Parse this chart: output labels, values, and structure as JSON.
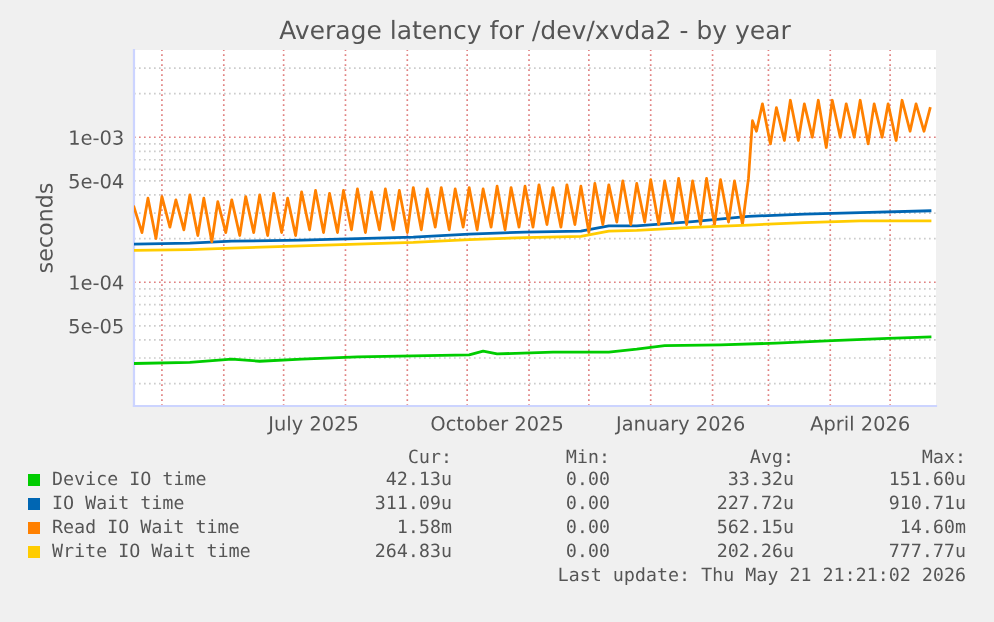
{
  "chart_data": {
    "type": "line",
    "title": "Average latency for /dev/xvda2 - by year",
    "ylabel": "seconds",
    "log": "y",
    "grid": true,
    "legend": "bottom",
    "xlim": [
      "2025-04-17",
      "2026-05-24"
    ],
    "xticks": [
      {
        "value": "2025-05-01",
        "label": null
      },
      {
        "value": "2025-06-01",
        "label": null
      },
      {
        "value": "2025-07-01",
        "label": null
      },
      {
        "value": "2025-07-16",
        "label": "July 2025"
      },
      {
        "value": "2025-08-01",
        "label": null
      },
      {
        "value": "2025-09-01",
        "label": null
      },
      {
        "value": "2025-10-01",
        "label": null
      },
      {
        "value": "2025-10-16",
        "label": "October 2025"
      },
      {
        "value": "2025-11-01",
        "label": null
      },
      {
        "value": "2025-12-01",
        "label": null
      },
      {
        "value": "2026-01-01",
        "label": null
      },
      {
        "value": "2026-01-16",
        "label": "January 2026"
      },
      {
        "value": "2026-02-01",
        "label": null
      },
      {
        "value": "2026-03-01",
        "label": null
      },
      {
        "value": "2026-04-01",
        "label": null
      },
      {
        "value": "2026-04-16",
        "label": "April 2026"
      },
      {
        "value": "2026-05-01",
        "label": null
      }
    ],
    "ylim": [
      1.4e-05,
      0.004
    ],
    "yticks": [
      {
        "value": 5e-05,
        "label": "5e-05"
      },
      {
        "value": 0.0001,
        "label": "1e-04"
      },
      {
        "value": 0.0005,
        "label": "5e-04"
      },
      {
        "value": 0.001,
        "label": "1e-03"
      }
    ],
    "series": [
      {
        "name": "Device IO time",
        "color": "#00cc00",
        "x": [
          "2025-04-17",
          "2025-05-15",
          "2025-06-05",
          "2025-06-19",
          "2025-07-10",
          "2025-08-07",
          "2025-09-04",
          "2025-10-02",
          "2025-10-09",
          "2025-10-16",
          "2025-11-13",
          "2025-12-11",
          "2025-12-25",
          "2026-01-08",
          "2026-02-05",
          "2026-03-05",
          "2026-04-02",
          "2026-04-30",
          "2026-05-21"
        ],
        "values": [
          2.75e-05,
          2.8e-05,
          2.95e-05,
          2.85e-05,
          2.95e-05,
          3.05e-05,
          3.1e-05,
          3.15e-05,
          3.35e-05,
          3.2e-05,
          3.3e-05,
          3.3e-05,
          3.45e-05,
          3.65e-05,
          3.7e-05,
          3.8e-05,
          3.95e-05,
          4.1e-05,
          4.2e-05
        ]
      },
      {
        "name": "IO Wait time",
        "color": "#0066b3",
        "x": [
          "2025-04-17",
          "2025-05-15",
          "2025-06-05",
          "2025-07-10",
          "2025-08-07",
          "2025-09-04",
          "2025-10-02",
          "2025-10-30",
          "2025-11-27",
          "2025-12-11",
          "2025-12-25",
          "2026-01-22",
          "2026-02-19",
          "2026-03-19",
          "2026-04-16",
          "2026-05-21"
        ],
        "values": [
          0.000183,
          0.000186,
          0.000192,
          0.000195,
          0.0002,
          0.000205,
          0.000215,
          0.000222,
          0.000225,
          0.000245,
          0.000245,
          0.000262,
          0.000285,
          0.000295,
          0.000302,
          0.000311
        ]
      },
      {
        "name": "Read IO Wait time",
        "color": "#ff8000",
        "x": [
          "2025-04-17",
          "2025-04-21",
          "2025-04-24",
          "2025-04-28",
          "2025-05-01",
          "2025-05-05",
          "2025-05-08",
          "2025-05-12",
          "2025-05-15",
          "2025-05-19",
          "2025-05-22",
          "2025-05-26",
          "2025-05-29",
          "2025-06-02",
          "2025-06-05",
          "2025-06-09",
          "2025-06-12",
          "2025-06-16",
          "2025-06-19",
          "2025-06-23",
          "2025-06-26",
          "2025-06-30",
          "2025-07-03",
          "2025-07-07",
          "2025-07-10",
          "2025-07-14",
          "2025-07-17",
          "2025-07-21",
          "2025-07-24",
          "2025-07-28",
          "2025-07-31",
          "2025-08-04",
          "2025-08-07",
          "2025-08-11",
          "2025-08-14",
          "2025-08-18",
          "2025-08-21",
          "2025-08-25",
          "2025-08-28",
          "2025-09-01",
          "2025-09-04",
          "2025-09-08",
          "2025-09-11",
          "2025-09-15",
          "2025-09-18",
          "2025-09-22",
          "2025-09-25",
          "2025-09-29",
          "2025-10-02",
          "2025-10-06",
          "2025-10-09",
          "2025-10-13",
          "2025-10-16",
          "2025-10-20",
          "2025-10-23",
          "2025-10-27",
          "2025-10-30",
          "2025-11-03",
          "2025-11-06",
          "2025-11-10",
          "2025-11-13",
          "2025-11-17",
          "2025-11-20",
          "2025-11-24",
          "2025-11-27",
          "2025-12-01",
          "2025-12-04",
          "2025-12-08",
          "2025-12-11",
          "2025-12-15",
          "2025-12-18",
          "2025-12-22",
          "2025-12-25",
          "2025-12-29",
          "2026-01-01",
          "2026-01-05",
          "2026-01-08",
          "2026-01-12",
          "2026-01-15",
          "2026-01-19",
          "2026-01-22",
          "2026-01-26",
          "2026-01-29",
          "2026-02-02",
          "2026-02-05",
          "2026-02-09",
          "2026-02-12",
          "2026-02-16",
          "2026-02-19",
          "2026-02-21",
          "2026-02-23",
          "2026-02-26",
          "2026-03-02",
          "2026-03-05",
          "2026-03-09",
          "2026-03-12",
          "2026-03-16",
          "2026-03-19",
          "2026-03-23",
          "2026-03-26",
          "2026-03-30",
          "2026-04-02",
          "2026-04-06",
          "2026-04-09",
          "2026-04-13",
          "2026-04-16",
          "2026-04-20",
          "2026-04-23",
          "2026-04-27",
          "2026-04-30",
          "2026-05-04",
          "2026-05-07",
          "2026-05-11",
          "2026-05-14",
          "2026-05-18",
          "2026-05-21"
        ],
        "values": [
          0.00033,
          0.00022,
          0.00038,
          0.0002,
          0.00039,
          0.00024,
          0.00037,
          0.00023,
          0.0004,
          0.00021,
          0.00038,
          0.00019,
          0.00036,
          0.00022,
          0.00037,
          0.00021,
          0.00039,
          0.00022,
          0.0004,
          0.00021,
          0.00041,
          0.00022,
          0.00038,
          0.00021,
          0.00042,
          0.00023,
          0.00043,
          0.00022,
          0.00041,
          0.00022,
          0.00043,
          0.00023,
          0.00044,
          0.00022,
          0.00042,
          0.00023,
          0.00044,
          0.00023,
          0.00043,
          0.00022,
          0.00045,
          0.00023,
          0.00044,
          0.00024,
          0.00045,
          0.00023,
          0.00044,
          0.00024,
          0.00045,
          0.00023,
          0.00044,
          0.00024,
          0.00046,
          0.00023,
          0.00045,
          0.00024,
          0.00046,
          0.00024,
          0.00047,
          0.00025,
          0.00045,
          0.00024,
          0.00047,
          0.00025,
          0.00046,
          0.00022,
          0.00048,
          0.00025,
          0.00047,
          0.00026,
          0.0005,
          0.00025,
          0.00048,
          0.00026,
          0.00051,
          0.00025,
          0.0005,
          0.00026,
          0.00052,
          0.00025,
          0.0005,
          0.00025,
          0.00052,
          0.00025,
          0.00051,
          0.00026,
          0.0005,
          0.00025,
          0.00052,
          0.0013,
          0.0011,
          0.0017,
          0.0009,
          0.0016,
          0.00095,
          0.0018,
          0.00095,
          0.0017,
          0.001,
          0.0018,
          0.00085,
          0.0018,
          0.001,
          0.0017,
          0.001,
          0.0018,
          0.0009,
          0.0017,
          0.001,
          0.0017,
          0.00095,
          0.0018,
          0.0011,
          0.0017,
          0.0011,
          0.00158
        ]
      },
      {
        "name": "Write IO Wait time",
        "color": "#ffcc00",
        "x": [
          "2025-04-17",
          "2025-05-15",
          "2025-06-05",
          "2025-07-10",
          "2025-08-07",
          "2025-09-04",
          "2025-10-02",
          "2025-10-30",
          "2025-11-27",
          "2025-12-11",
          "2025-12-25",
          "2026-01-22",
          "2026-02-19",
          "2026-03-19",
          "2026-04-16",
          "2026-05-21"
        ],
        "values": [
          0.000166,
          0.000168,
          0.000172,
          0.000178,
          0.000183,
          0.000188,
          0.000197,
          0.000203,
          0.000207,
          0.000225,
          0.000228,
          0.000239,
          0.000248,
          0.000258,
          0.000265,
          0.000265
        ]
      }
    ],
    "legend_title": null,
    "annotations": [
      "Cur:",
      "Min:",
      "Avg:",
      "Max:",
      "42.13u",
      "0.00",
      "33.32u",
      "151.60u",
      "311.09u",
      "0.00",
      "227.72u",
      "910.71u",
      "1.58m",
      "0.00",
      "562.15u",
      "14.60m",
      "264.83u",
      "0.00",
      "202.26u",
      "777.77u",
      "Last update: Thu May 21 21:21:02 2026"
    ]
  }
}
